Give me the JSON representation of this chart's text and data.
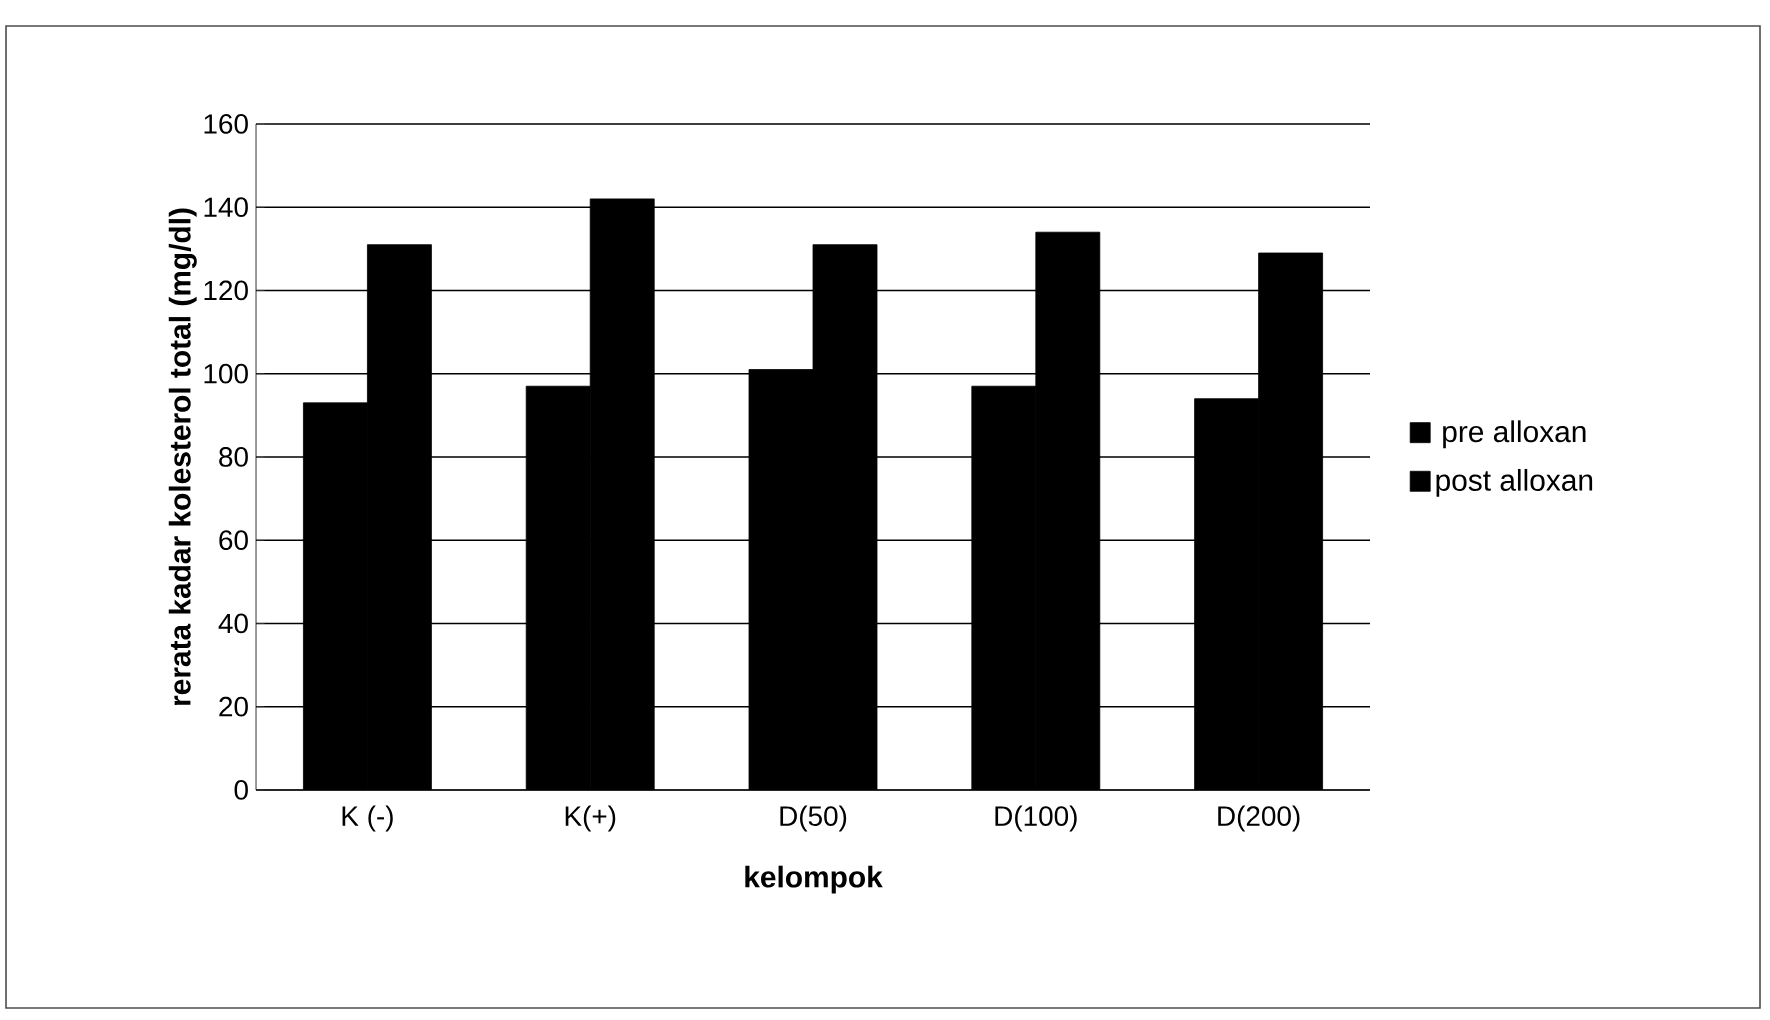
{
  "chart_data": {
    "type": "bar",
    "xlabel": "kelompok",
    "ylabel": "rerata kadar kolesterol total (mg/dl)",
    "categories": [
      "K (-)",
      "K(+)",
      "D(50)",
      "D(100)",
      "D(200)"
    ],
    "series": [
      {
        "name": "pre alloxan",
        "color": "#000000",
        "values": [
          93,
          97,
          101,
          97,
          94
        ]
      },
      {
        "name": "post alloxan",
        "color": "#000000",
        "values": [
          131,
          142,
          131,
          134,
          129
        ]
      }
    ],
    "ylim": [
      0,
      160
    ],
    "yticks": [
      0,
      20,
      40,
      60,
      80,
      100,
      120,
      140,
      160
    ],
    "grid": "y",
    "legend": "right"
  }
}
